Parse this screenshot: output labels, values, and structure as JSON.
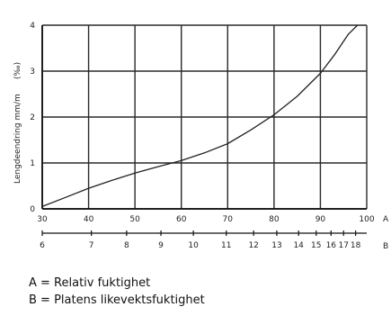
{
  "chart_data": {
    "type": "line",
    "title": "",
    "ylabel": "Lengdeendring mm/m",
    "yunit": "(‰)",
    "xlabel": "A",
    "x2label": "B",
    "xlim": [
      30,
      100
    ],
    "ylim": [
      0,
      4
    ],
    "grid": true,
    "x_ticks": [
      "30",
      "40",
      "50",
      "60",
      "70",
      "80",
      "90",
      "100"
    ],
    "y_ticks": [
      "0",
      "1",
      "2",
      "3",
      "4"
    ],
    "x2_ticks": [
      {
        "label": "6",
        "at": 30
      },
      {
        "label": "7",
        "at": 40.6
      },
      {
        "label": "8",
        "at": 48.2
      },
      {
        "label": "9",
        "at": 55.6
      },
      {
        "label": "10",
        "at": 62.6
      },
      {
        "label": "11",
        "at": 69.7
      },
      {
        "label": "12",
        "at": 75.6
      },
      {
        "label": "13",
        "at": 80.6
      },
      {
        "label": "14",
        "at": 85.3
      },
      {
        "label": "15",
        "at": 89.1
      },
      {
        "label": "16",
        "at": 92.3
      },
      {
        "label": "17",
        "at": 95.0
      },
      {
        "label": "18",
        "at": 97.6
      }
    ],
    "series": [
      {
        "x": [
          30,
          35,
          40,
          45,
          50,
          55,
          60,
          65,
          70,
          75,
          80,
          85,
          90,
          93,
          96,
          98
        ],
        "y": [
          0.05,
          0.25,
          0.45,
          0.62,
          0.78,
          0.92,
          1.05,
          1.22,
          1.42,
          1.72,
          2.05,
          2.45,
          2.95,
          3.35,
          3.8,
          4.0
        ]
      }
    ]
  },
  "legend": {
    "line_a": "A = Relativ fuktighet",
    "line_b": "B = Platens likevektsfuktighet"
  }
}
